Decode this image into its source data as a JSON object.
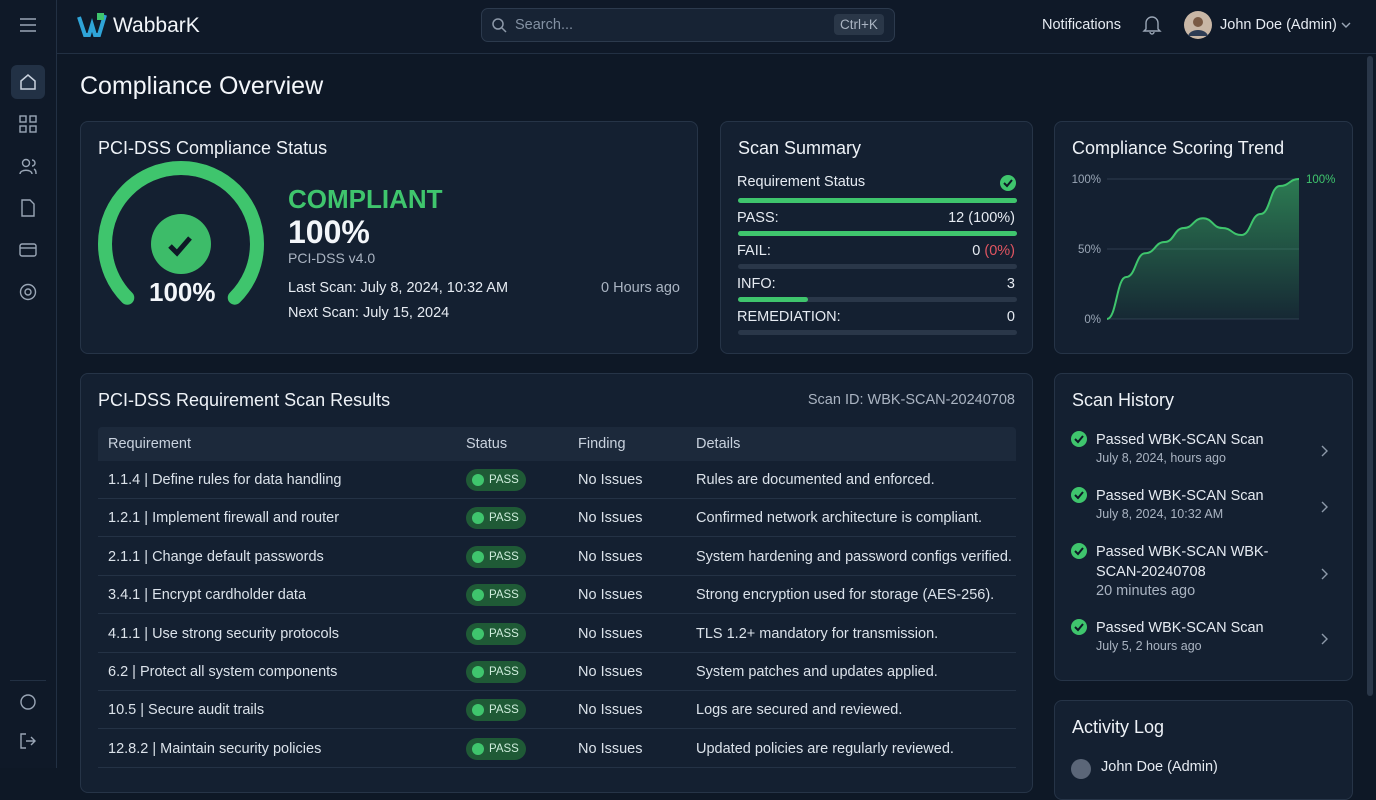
{
  "brand": "WabbarK",
  "search": {
    "placeholder": "Search...",
    "shortcut": "Ctrl+K"
  },
  "header": {
    "notifications": "Notifications",
    "user": "John Doe (Admin)"
  },
  "page_title": "Compliance Overview",
  "status_card": {
    "title": "PCI-DSS Compliance Status",
    "gauge": {
      "value": 100,
      "label": "100%"
    },
    "status": "COMPLIANT",
    "score": "100%",
    "standard": "PCI-DSS v4.0",
    "last_scan": "Last Scan: July 8, 2024, 10:32 AM",
    "next_scan": "Next Scan: July 15, 2024",
    "ago": "0 Hours ago"
  },
  "summary": {
    "title": "Scan Summary",
    "heading": "Requirement Status",
    "rows": [
      {
        "label": "PASS:",
        "count": 12,
        "note": "(100%)"
      },
      {
        "label": "FAIL:",
        "count": 0,
        "note": "(0%)"
      },
      {
        "label": "INFO:",
        "count": 3
      },
      {
        "label": "REMEDIATION:",
        "count": 0
      }
    ]
  },
  "trend": {
    "title": "Compliance Scoring Trend",
    "ylim": [
      0,
      100
    ],
    "yticks": [
      {
        "value": 0,
        "label": "0%"
      },
      {
        "value": 50,
        "label": "50%"
      },
      {
        "value": 100,
        "label": "100%"
      }
    ],
    "values": [
      0,
      30,
      47,
      55,
      65,
      72,
      65,
      60,
      75,
      95,
      100
    ],
    "end_label": "100%"
  },
  "results": {
    "title": "PCI-DSS Requirement Scan Results",
    "scan_id": "Scan ID: WBK-SCAN-20240708",
    "columns": [
      "Requirement",
      "Status",
      "Finding",
      "Details"
    ],
    "rows": [
      [
        "1.1.4 | Define rules for data handling",
        "PASS",
        "No Issues",
        "Rules are documented and enforced."
      ],
      [
        "1.2.1 | Implement firewall and router",
        "PASS",
        "No Issues",
        "Confirmed network architecture is compliant."
      ],
      [
        "2.1.1 | Change default passwords",
        "PASS",
        "No Issues",
        "System hardening and password configs verified."
      ],
      [
        "3.4.1 | Encrypt cardholder data",
        "PASS",
        "No Issues",
        "Strong encryption used for storage (AES-256)."
      ],
      [
        "4.1.1 | Use strong security protocols",
        "PASS",
        "No Issues",
        "TLS 1.2+ mandatory for transmission."
      ],
      [
        "6.2 | Protect all system components",
        "PASS",
        "No Issues",
        "System patches and updates applied."
      ],
      [
        "10.5 | Secure audit trails",
        "PASS",
        "No Issues",
        "Logs are secured and reviewed."
      ],
      [
        "12.8.2 | Maintain security policies",
        "PASS",
        "No Issues",
        "Updated policies are regularly reviewed."
      ]
    ]
  },
  "history": {
    "title": "Scan History",
    "items": [
      {
        "title": "Passed WBK-SCAN Scan",
        "subtitle": "July 8, 2024, hours ago"
      },
      {
        "title": "Passed WBK-SCAN Scan",
        "subtitle": "July 8, 2024, 10:32 AM"
      },
      {
        "title": "Passed WBK-SCAN WBK-SCAN-20240708",
        "subtitle": "20 minutes ago"
      },
      {
        "title": "Passed WBK-SCAN Scan",
        "subtitle": "July 5, 2 hours ago"
      }
    ]
  },
  "activity": {
    "title": "Activity Log",
    "items": [
      "John Doe (Admin)"
    ]
  }
}
